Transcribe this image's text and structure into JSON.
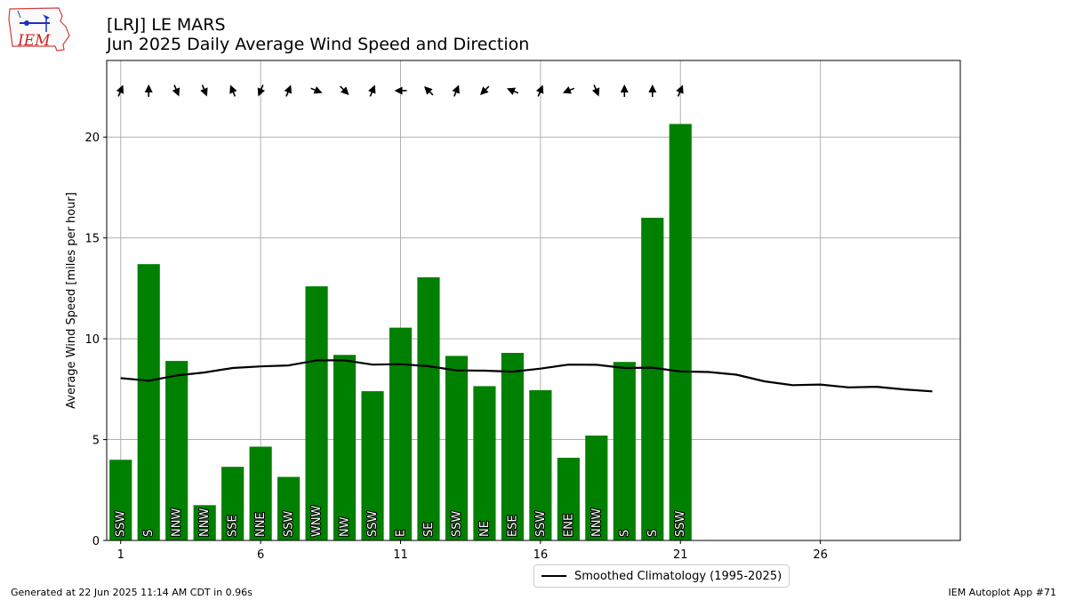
{
  "header": {
    "title_line1": "[LRJ] LE MARS",
    "title_line2": "Jun 2025 Daily Average Wind Speed and Direction"
  },
  "logo": {
    "name": "iem-logo",
    "text": "IEM"
  },
  "footer": {
    "left": "Generated at 22 Jun 2025 11:14 AM CDT in 0.96s",
    "right": "IEM Autoplot App #71"
  },
  "legend": {
    "label": "Smoothed Climatology (1995-2025)",
    "location": "lower-center, below plot"
  },
  "colors": {
    "bar": "#008000",
    "line": "#000000",
    "arrow": "#000000",
    "grid": "#b0b0b0",
    "label_text": "#ffffff"
  },
  "chart_data": {
    "type": "bar",
    "title": "[LRJ] LE MARS Jun 2025 Daily Average Wind Speed and Direction",
    "xlabel": "",
    "ylabel": "Average Wind Speed [miles per hour]",
    "xlim": [
      0.5,
      31
    ],
    "ylim": [
      0,
      23.8
    ],
    "xticks": [
      1,
      6,
      11,
      16,
      21,
      26
    ],
    "yticks": [
      0,
      5,
      10,
      15,
      20
    ],
    "grid": true,
    "days": [
      1,
      2,
      3,
      4,
      5,
      6,
      7,
      8,
      9,
      10,
      11,
      12,
      13,
      14,
      15,
      16,
      17,
      18,
      19,
      20,
      21
    ],
    "speed_mph": [
      4.0,
      13.7,
      8.9,
      1.75,
      3.65,
      4.65,
      3.15,
      12.6,
      9.2,
      7.4,
      10.55,
      13.05,
      9.15,
      7.65,
      9.3,
      7.45,
      4.1,
      5.2,
      8.85,
      16.0,
      20.65
    ],
    "direction": [
      "SSW",
      "S",
      "NNW",
      "NNW",
      "SSE",
      "NNE",
      "SSW",
      "WNW",
      "NW",
      "SSW",
      "E",
      "SE",
      "SSW",
      "NE",
      "ESE",
      "SSW",
      "ENE",
      "NNW",
      "S",
      "S",
      "SSW"
    ],
    "series": [
      {
        "name": "Smoothed Climatology (1995-2025)",
        "x": [
          1,
          2,
          3,
          4,
          5,
          6,
          7,
          8,
          9,
          10,
          11,
          12,
          13,
          14,
          15,
          16,
          17,
          18,
          19,
          20,
          21,
          22,
          23,
          24,
          25,
          26,
          27,
          28,
          29,
          30
        ],
        "values": [
          8.05,
          7.92,
          8.18,
          8.33,
          8.55,
          8.63,
          8.68,
          8.93,
          8.93,
          8.72,
          8.74,
          8.64,
          8.43,
          8.42,
          8.37,
          8.52,
          8.72,
          8.71,
          8.55,
          8.57,
          8.38,
          8.35,
          8.22,
          7.89,
          7.7,
          7.73,
          7.59,
          7.62,
          7.49,
          7.39
        ]
      }
    ]
  }
}
